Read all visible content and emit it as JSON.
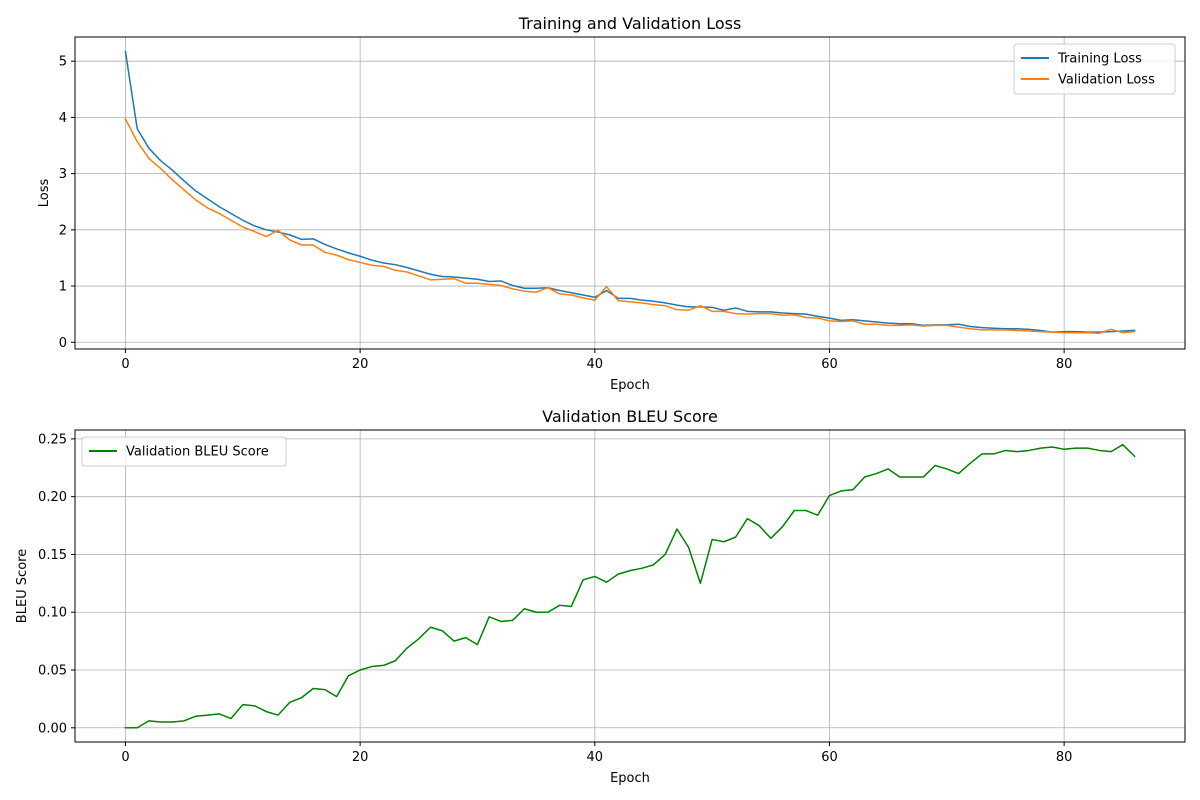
{
  "chart_data": [
    {
      "type": "line",
      "title": "Training and Validation Loss",
      "xlabel": "Epoch",
      "ylabel": "Loss",
      "xlim": [
        -4.3,
        90.3
      ],
      "ylim": [
        -0.12,
        5.43
      ],
      "xticks": [
        0,
        20,
        40,
        60,
        80
      ],
      "yticks": [
        0,
        1,
        2,
        3,
        4,
        5
      ],
      "ytick_labels": [
        "0",
        "1",
        "2",
        "3",
        "4",
        "5"
      ],
      "grid": true,
      "legend_position": "upper right",
      "x": [
        0,
        1,
        2,
        3,
        4,
        5,
        6,
        7,
        8,
        9,
        10,
        11,
        12,
        13,
        14,
        15,
        16,
        17,
        18,
        19,
        20,
        21,
        22,
        23,
        24,
        25,
        26,
        27,
        28,
        29,
        30,
        31,
        32,
        33,
        34,
        35,
        36,
        37,
        38,
        39,
        40,
        41,
        42,
        43,
        44,
        45,
        46,
        47,
        48,
        49,
        50,
        51,
        52,
        53,
        54,
        55,
        56,
        57,
        58,
        59,
        60,
        61,
        62,
        63,
        64,
        65,
        66,
        67,
        68,
        69,
        70,
        71,
        72,
        73,
        74,
        75,
        76,
        77,
        78,
        79,
        80,
        81,
        82,
        83,
        84,
        85,
        86
      ],
      "series": [
        {
          "name": "Training Loss",
          "color": "#1f77b4",
          "values": [
            5.17,
            3.8,
            3.45,
            3.23,
            3.06,
            2.87,
            2.69,
            2.55,
            2.41,
            2.29,
            2.17,
            2.07,
            2.0,
            1.96,
            1.91,
            1.83,
            1.84,
            1.74,
            1.66,
            1.59,
            1.53,
            1.46,
            1.41,
            1.38,
            1.33,
            1.27,
            1.21,
            1.17,
            1.16,
            1.14,
            1.12,
            1.08,
            1.09,
            1.01,
            0.96,
            0.96,
            0.97,
            0.92,
            0.88,
            0.84,
            0.8,
            0.92,
            0.78,
            0.78,
            0.75,
            0.73,
            0.7,
            0.66,
            0.63,
            0.63,
            0.62,
            0.57,
            0.61,
            0.55,
            0.54,
            0.54,
            0.52,
            0.51,
            0.5,
            0.46,
            0.43,
            0.39,
            0.4,
            0.38,
            0.36,
            0.34,
            0.33,
            0.33,
            0.3,
            0.31,
            0.31,
            0.32,
            0.28,
            0.26,
            0.25,
            0.24,
            0.24,
            0.23,
            0.21,
            0.18,
            0.19,
            0.19,
            0.18,
            0.18,
            0.19,
            0.2,
            0.21
          ]
        },
        {
          "name": "Validation Loss",
          "color": "#ff7f0e",
          "values": [
            3.97,
            3.57,
            3.27,
            3.09,
            2.89,
            2.71,
            2.53,
            2.39,
            2.29,
            2.17,
            2.05,
            1.97,
            1.88,
            1.99,
            1.82,
            1.73,
            1.73,
            1.6,
            1.55,
            1.47,
            1.42,
            1.37,
            1.35,
            1.28,
            1.25,
            1.18,
            1.11,
            1.12,
            1.13,
            1.05,
            1.05,
            1.03,
            1.01,
            0.95,
            0.91,
            0.89,
            0.97,
            0.86,
            0.84,
            0.79,
            0.75,
            0.99,
            0.74,
            0.72,
            0.7,
            0.67,
            0.65,
            0.58,
            0.57,
            0.65,
            0.55,
            0.55,
            0.51,
            0.5,
            0.51,
            0.51,
            0.48,
            0.49,
            0.44,
            0.43,
            0.38,
            0.37,
            0.38,
            0.32,
            0.32,
            0.3,
            0.3,
            0.31,
            0.29,
            0.3,
            0.3,
            0.27,
            0.24,
            0.22,
            0.22,
            0.22,
            0.21,
            0.2,
            0.19,
            0.18,
            0.17,
            0.17,
            0.17,
            0.16,
            0.23,
            0.17,
            0.19
          ]
        }
      ]
    },
    {
      "type": "line",
      "title": "Validation BLEU Score",
      "xlabel": "Epoch",
      "ylabel": "BLEU Score",
      "xlim": [
        -4.3,
        90.3
      ],
      "ylim": [
        -0.0123,
        0.2577
      ],
      "xticks": [
        0,
        20,
        40,
        60,
        80
      ],
      "yticks": [
        0,
        0.05,
        0.1,
        0.15,
        0.2,
        0.25
      ],
      "ytick_labels": [
        "0.00",
        "0.05",
        "0.10",
        "0.15",
        "0.20",
        "0.25"
      ],
      "grid": true,
      "legend_position": "upper left",
      "x": [
        0,
        1,
        2,
        3,
        4,
        5,
        6,
        7,
        8,
        9,
        10,
        11,
        12,
        13,
        14,
        15,
        16,
        17,
        18,
        19,
        20,
        21,
        22,
        23,
        24,
        25,
        26,
        27,
        28,
        29,
        30,
        31,
        32,
        33,
        34,
        35,
        36,
        37,
        38,
        39,
        40,
        41,
        42,
        43,
        44,
        45,
        46,
        47,
        48,
        49,
        50,
        51,
        52,
        53,
        54,
        55,
        56,
        57,
        58,
        59,
        60,
        61,
        62,
        63,
        64,
        65,
        66,
        67,
        68,
        69,
        70,
        71,
        72,
        73,
        74,
        75,
        76,
        77,
        78,
        79,
        80,
        81,
        82,
        83,
        84,
        85,
        86
      ],
      "series": [
        {
          "name": "Validation BLEU Score",
          "color": "#008000",
          "values": [
            0.0,
            0.0,
            0.006,
            0.005,
            0.005,
            0.006,
            0.01,
            0.011,
            0.012,
            0.008,
            0.02,
            0.019,
            0.014,
            0.011,
            0.022,
            0.026,
            0.034,
            0.033,
            0.027,
            0.045,
            0.05,
            0.053,
            0.054,
            0.058,
            0.069,
            0.077,
            0.087,
            0.084,
            0.075,
            0.078,
            0.072,
            0.096,
            0.092,
            0.093,
            0.103,
            0.1,
            0.1,
            0.106,
            0.105,
            0.128,
            0.131,
            0.126,
            0.133,
            0.136,
            0.138,
            0.141,
            0.15,
            0.172,
            0.156,
            0.125,
            0.163,
            0.161,
            0.165,
            0.181,
            0.175,
            0.164,
            0.174,
            0.188,
            0.188,
            0.184,
            0.201,
            0.205,
            0.206,
            0.217,
            0.22,
            0.224,
            0.217,
            0.217,
            0.217,
            0.227,
            0.224,
            0.22,
            0.229,
            0.237,
            0.237,
            0.24,
            0.239,
            0.24,
            0.242,
            0.243,
            0.241,
            0.242,
            0.242,
            0.24,
            0.239,
            0.245,
            0.235
          ]
        }
      ]
    }
  ]
}
